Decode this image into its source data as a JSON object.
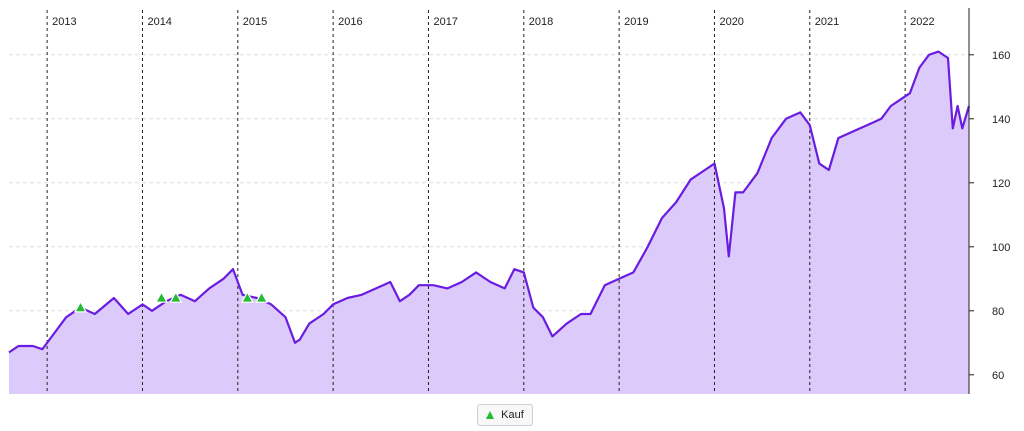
{
  "chart_data": {
    "type": "area",
    "years": [
      "2013",
      "2014",
      "2015",
      "2016",
      "2017",
      "2018",
      "2019",
      "2020",
      "2021",
      "2022"
    ],
    "y_ticks": [
      60,
      80,
      100,
      120,
      140,
      160
    ],
    "ylim": [
      54,
      174
    ],
    "xlim": [
      2012.6,
      2022.67
    ],
    "grid": true,
    "colors": {
      "line": "#6a1de0",
      "fill": "#dccbfa",
      "marker": "#22bb33"
    },
    "series": [
      {
        "x": [
          2012.6,
          2012.7,
          2012.85,
          2012.95,
          2013.05,
          2013.2,
          2013.35,
          2013.5,
          2013.7,
          2013.85,
          2014.0,
          2014.1,
          2014.25,
          2014.4,
          2014.55,
          2014.7,
          2014.85,
          2014.95,
          2015.05,
          2015.2,
          2015.35,
          2015.5,
          2015.6,
          2015.65,
          2015.75,
          2015.9,
          2016.0,
          2016.15,
          2016.3,
          2016.45,
          2016.6,
          2016.7,
          2016.8,
          2016.9,
          2017.05,
          2017.2,
          2017.35,
          2017.5,
          2017.65,
          2017.8,
          2017.9,
          2018.0,
          2018.1,
          2018.2,
          2018.3,
          2018.45,
          2018.6,
          2018.7,
          2018.85,
          2019.0,
          2019.15,
          2019.3,
          2019.45,
          2019.6,
          2019.75,
          2019.9,
          2020.0,
          2020.1,
          2020.15,
          2020.22,
          2020.3,
          2020.45,
          2020.6,
          2020.75,
          2020.9,
          2021.0,
          2021.1,
          2021.2,
          2021.3,
          2021.45,
          2021.6,
          2021.75,
          2021.85,
          2021.95,
          2022.05,
          2022.15,
          2022.25,
          2022.35,
          2022.45,
          2022.5,
          2022.55,
          2022.6,
          2022.67
        ],
        "values": [
          67,
          69,
          69,
          68,
          72,
          78,
          81,
          79,
          84,
          79,
          82,
          80,
          83,
          85,
          83,
          87,
          90,
          93,
          85,
          84,
          82,
          78,
          70,
          71,
          76,
          79,
          82,
          84,
          85,
          87,
          89,
          83,
          85,
          88,
          88,
          87,
          89,
          92,
          89,
          87,
          93,
          92,
          81,
          78,
          72,
          76,
          79,
          79,
          88,
          90,
          92,
          100,
          109,
          114,
          121,
          124,
          126,
          112,
          97,
          117,
          117,
          123,
          134,
          140,
          142,
          138,
          126,
          124,
          134,
          136,
          138,
          140,
          144,
          146,
          148,
          156,
          160,
          161,
          159,
          137,
          144,
          137,
          144
        ]
      }
    ],
    "buy_markers": [
      {
        "x": 2013.35,
        "y": 80
      },
      {
        "x": 2014.2,
        "y": 83
      },
      {
        "x": 2014.35,
        "y": 83
      },
      {
        "x": 2015.1,
        "y": 83
      },
      {
        "x": 2015.25,
        "y": 83
      }
    ],
    "legend": {
      "label": "Kauf"
    }
  }
}
